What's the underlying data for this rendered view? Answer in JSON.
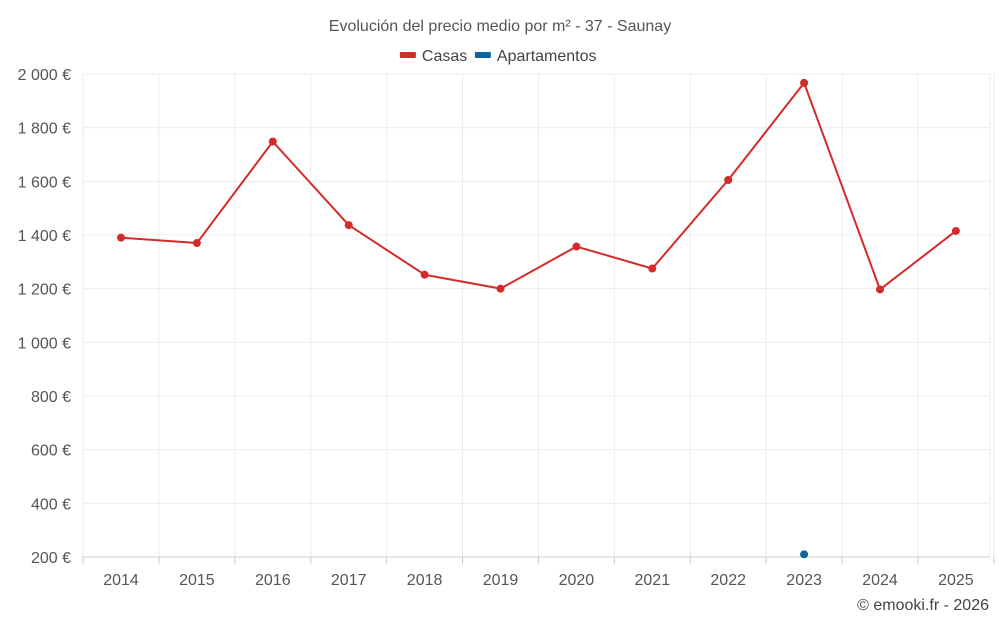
{
  "chart_data": {
    "type": "line",
    "title": "Evolución del precio medio por m² - 37 - Saunay",
    "categories": [
      "2014",
      "2015",
      "2016",
      "2017",
      "2018",
      "2019",
      "2020",
      "2021",
      "2022",
      "2023",
      "2024",
      "2025"
    ],
    "ylim": [
      200,
      2000
    ],
    "yticks": [
      200,
      400,
      600,
      800,
      1000,
      1200,
      1400,
      1600,
      1800,
      2000
    ],
    "ytick_labels": [
      "200 €",
      "400 €",
      "600 €",
      "800 €",
      "1 000 €",
      "1 200 €",
      "1 400 €",
      "1 600 €",
      "1 800 €",
      "2 000 €"
    ],
    "grid": true,
    "legend_position": "top-center",
    "series": [
      {
        "name": "Casas",
        "color": "#d42a2a",
        "values": [
          1390,
          1370,
          1748,
          1437,
          1252,
          1200,
          1357,
          1275,
          1605,
          1967,
          1197,
          1415
        ]
      },
      {
        "name": "Apartamentos",
        "color": "#0f64a0",
        "values": [
          null,
          null,
          null,
          null,
          null,
          null,
          null,
          null,
          null,
          210,
          null,
          null
        ]
      }
    ]
  },
  "credit": "© emooki.fr - 2026"
}
